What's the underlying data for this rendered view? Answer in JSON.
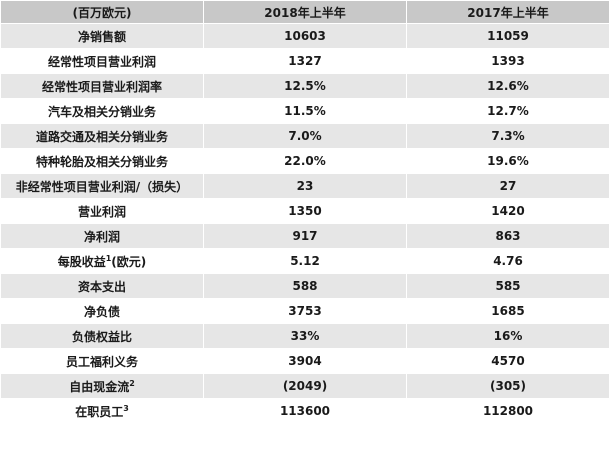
{
  "header": {
    "unit_label": "(百万欧元)",
    "col_2018": "2018年上半年",
    "col_2017": "2017年上半年"
  },
  "rows": [
    {
      "label": "净销售额",
      "v2018": "10603",
      "v2017": "11059"
    },
    {
      "label": "经常性项目营业利润",
      "v2018": "1327",
      "v2017": "1393"
    },
    {
      "label": "经常性项目营业利润率",
      "v2018": "12.5%",
      "v2017": "12.6%"
    },
    {
      "label": "汽车及相关分销业务",
      "v2018": "11.5%",
      "v2017": "12.7%"
    },
    {
      "label": "道路交通及相关分销业务",
      "v2018": "7.0%",
      "v2017": "7.3%"
    },
    {
      "label": "特种轮胎及相关分销业务",
      "v2018": "22.0%",
      "v2017": "19.6%"
    },
    {
      "label": "非经常性项目营业利润/（损失）",
      "v2018": "23",
      "v2017": "27"
    },
    {
      "label": "营业利润",
      "v2018": "1350",
      "v2017": "1420"
    },
    {
      "label": "净利润",
      "v2018": "917",
      "v2017": "863"
    },
    {
      "label": "每股收益",
      "sup": "1",
      "suffix": "(欧元)",
      "v2018": "5.12",
      "v2017": "4.76"
    },
    {
      "label": "资本支出",
      "v2018": "588",
      "v2017": "585"
    },
    {
      "label": "净负债",
      "v2018": "3753",
      "v2017": "1685"
    },
    {
      "label": "负债权益比",
      "v2018": "33%",
      "v2017": "16%"
    },
    {
      "label": "员工福利义务",
      "v2018": "3904",
      "v2017": "4570"
    },
    {
      "label": "自由现金流",
      "sup": "2",
      "v2018": "(2049)",
      "v2017": "(305)"
    },
    {
      "label": "在职员工",
      "sup": "3",
      "v2018": "113600",
      "v2017": "112800"
    }
  ]
}
